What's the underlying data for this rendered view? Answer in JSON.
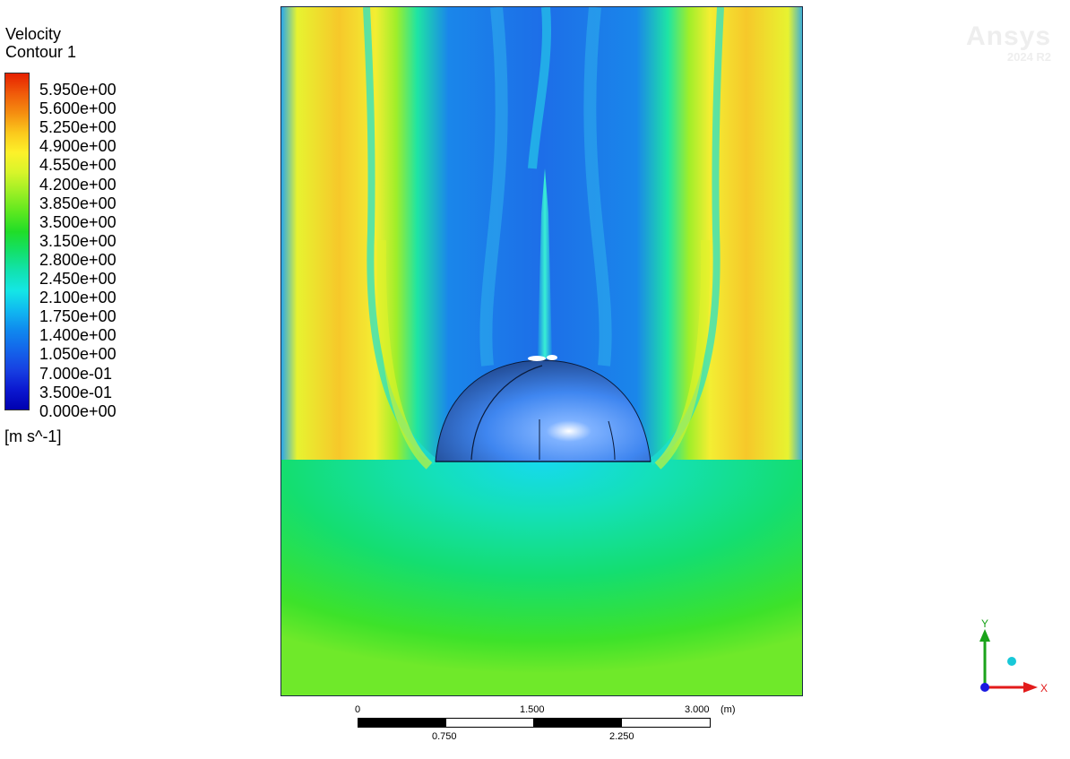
{
  "legend": {
    "title_line1": "Velocity",
    "title_line2": "Contour 1",
    "levels": [
      "5.950e+00",
      "5.600e+00",
      "5.250e+00",
      "4.900e+00",
      "4.550e+00",
      "4.200e+00",
      "3.850e+00",
      "3.500e+00",
      "3.150e+00",
      "2.800e+00",
      "2.450e+00",
      "2.100e+00",
      "1.750e+00",
      "1.400e+00",
      "1.050e+00",
      "7.000e-01",
      "3.500e-01",
      "0.000e+00"
    ],
    "unit": "[m s^-1]",
    "colors": [
      "#e62000",
      "#f05a0a",
      "#f58e10",
      "#fbc81c",
      "#fdf12a",
      "#d8f52a",
      "#9cef25",
      "#5de81f",
      "#20dd28",
      "#13e06a",
      "#12e2b0",
      "#14e6e6",
      "#10b8f0",
      "#0f88ee",
      "#1464ea",
      "#1740e2",
      "#0b18d0",
      "#0000b0"
    ]
  },
  "scale": {
    "top_labels": [
      "0",
      "1.500",
      "3.000"
    ],
    "top_unit": "(m)",
    "bottom_labels": [
      "0.750",
      "2.250"
    ]
  },
  "watermark": {
    "brand": "Ansys",
    "version": "2024 R2"
  },
  "axes": {
    "y_label": "Y",
    "x_label": "X",
    "y_color": "#1aa31a",
    "x_color": "#e21b1b",
    "origin_color": "#1a1ae0"
  }
}
